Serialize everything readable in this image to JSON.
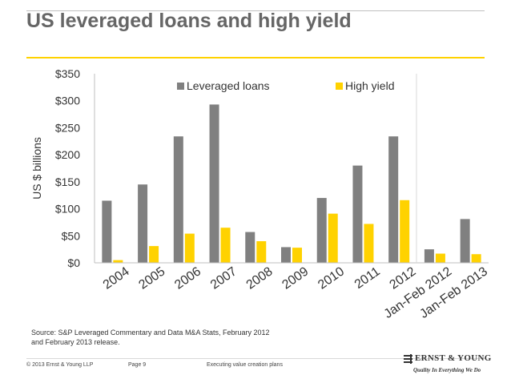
{
  "slide": {
    "title": "US leveraged loans and high yield"
  },
  "chart_data": {
    "type": "bar",
    "categories": [
      "2004",
      "2005",
      "2006",
      "2007",
      "2008",
      "2009",
      "2010",
      "2011",
      "2012",
      "Jan-Feb 2012",
      "Jan-Feb 2013"
    ],
    "series": [
      {
        "name": "Leveraged loans",
        "color": "#808080",
        "values": [
          115,
          145,
          234,
          293,
          57,
          29,
          120,
          180,
          234,
          25,
          81
        ]
      },
      {
        "name": "High yield",
        "color": "#ffd200",
        "values": [
          5,
          31,
          54,
          65,
          40,
          28,
          91,
          72,
          116,
          17,
          16
        ]
      }
    ],
    "ylabel": "US $ billions",
    "xlabel": "",
    "ylim": [
      0,
      350
    ],
    "yticks": [
      "$0",
      "$50",
      "$100",
      "$150",
      "$200",
      "$250",
      "$300",
      "$350"
    ],
    "legend_position": "top",
    "grid": false
  },
  "source": {
    "line1": "Source: S&P Leveraged Commentary and Data M&A Stats, February 2012",
    "line2": "and February 2013 release."
  },
  "footer": {
    "copyright": "© 2013 Ernst & Young LLP",
    "page": "Page 9",
    "caption": "Executing value creation plans",
    "logo_name": "ERNST & YOUNG",
    "logo_tagline": "Quality In Everything We Do"
  }
}
